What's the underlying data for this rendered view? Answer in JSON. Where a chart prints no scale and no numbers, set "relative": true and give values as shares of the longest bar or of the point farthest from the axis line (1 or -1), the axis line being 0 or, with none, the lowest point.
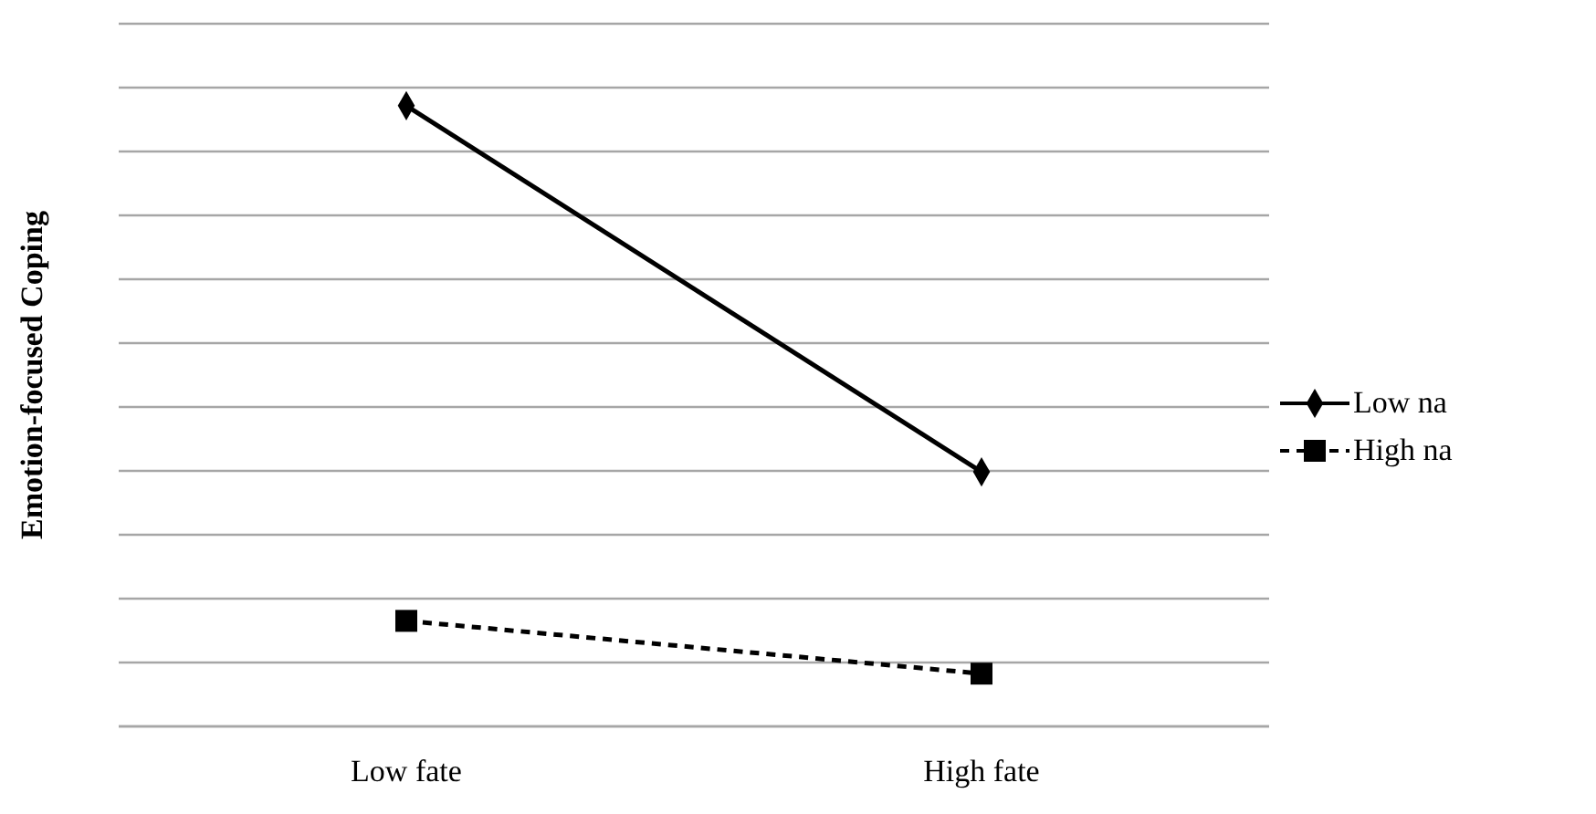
{
  "chart_data": {
    "type": "line",
    "relative": true,
    "ylabel": "Emotion-focused Coping",
    "categories": [
      "Low fate",
      "High fate"
    ],
    "series": [
      {
        "name": "Low na",
        "color": "#000000",
        "values": [
          1,
          0.41
        ],
        "marker": "diamond",
        "line_style": "solid"
      },
      {
        "name": "High na",
        "color": "#000000",
        "values": [
          0.17,
          0.085
        ],
        "marker": "square",
        "line_style": "dashed"
      }
    ],
    "grid": "y",
    "legend": "right"
  }
}
